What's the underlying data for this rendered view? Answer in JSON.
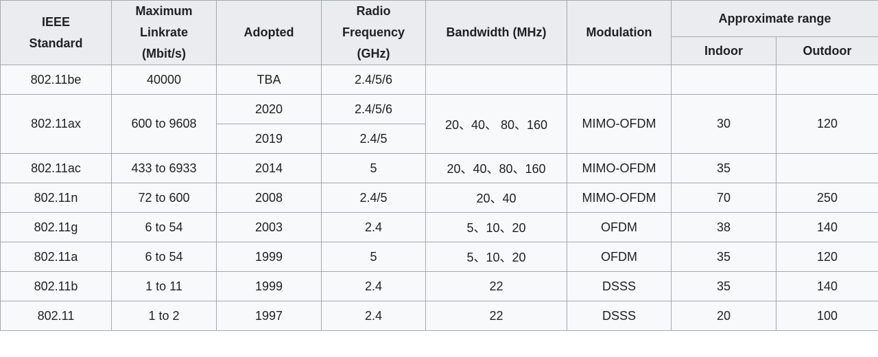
{
  "table": {
    "headers": {
      "standard": [
        "IEEE",
        "Standard"
      ],
      "linkrate": [
        "Maximum",
        "Linkrate",
        "(Mbit/s)"
      ],
      "adopted": "Adopted",
      "frequency": [
        "Radio",
        "Frequency",
        "(GHz)"
      ],
      "bandwidth": "Bandwidth (MHz)",
      "modulation": "Modulation",
      "range": "Approximate range",
      "indoor": "Indoor",
      "outdoor": "Outdoor"
    },
    "rows": [
      {
        "standard": "802.11be",
        "linkrate": "40000",
        "adopted": "TBA",
        "frequency": "2.4/5/6",
        "bandwidth": "",
        "modulation": "",
        "indoor": "",
        "outdoor": ""
      },
      {
        "standard": "802.11ax",
        "linkrate": "600 to 9608",
        "adopted": "2020",
        "frequency": "2.4/5/6",
        "adopted_b": "2019",
        "frequency_b": "2.4/5",
        "bandwidth": "20、40、 80、160",
        "modulation": "MIMO-OFDM",
        "indoor": "30",
        "outdoor": "120"
      },
      {
        "standard": "802.11ac",
        "linkrate": "433 to 6933",
        "adopted": "2014",
        "frequency": "5",
        "bandwidth": "20、40、80、160",
        "modulation": "MIMO-OFDM",
        "indoor": "35",
        "outdoor": ""
      },
      {
        "standard": "802.11n",
        "linkrate": "72 to 600",
        "adopted": "2008",
        "frequency": "2.4/5",
        "bandwidth": "20、40",
        "modulation": "MIMO-OFDM",
        "indoor": "70",
        "outdoor": "250"
      },
      {
        "standard": "802.11g",
        "linkrate": "6 to 54",
        "adopted": "2003",
        "frequency": "2.4",
        "bandwidth": "5、10、20",
        "modulation": "OFDM",
        "indoor": "38",
        "outdoor": "140"
      },
      {
        "standard": "802.11a",
        "linkrate": "6 to 54",
        "adopted": "1999",
        "frequency": "5",
        "bandwidth": "5、10、20",
        "modulation": "OFDM",
        "indoor": "35",
        "outdoor": "120"
      },
      {
        "standard": "802.11b",
        "linkrate": "1 to 11",
        "adopted": "1999",
        "frequency": "2.4",
        "bandwidth": "22",
        "modulation": "DSSS",
        "indoor": "35",
        "outdoor": "140"
      },
      {
        "standard": "802.11",
        "linkrate": "1 to 2",
        "adopted": "1997",
        "frequency": "2.4",
        "bandwidth": "22",
        "modulation": "DSSS",
        "indoor": "20",
        "outdoor": "100"
      }
    ]
  }
}
